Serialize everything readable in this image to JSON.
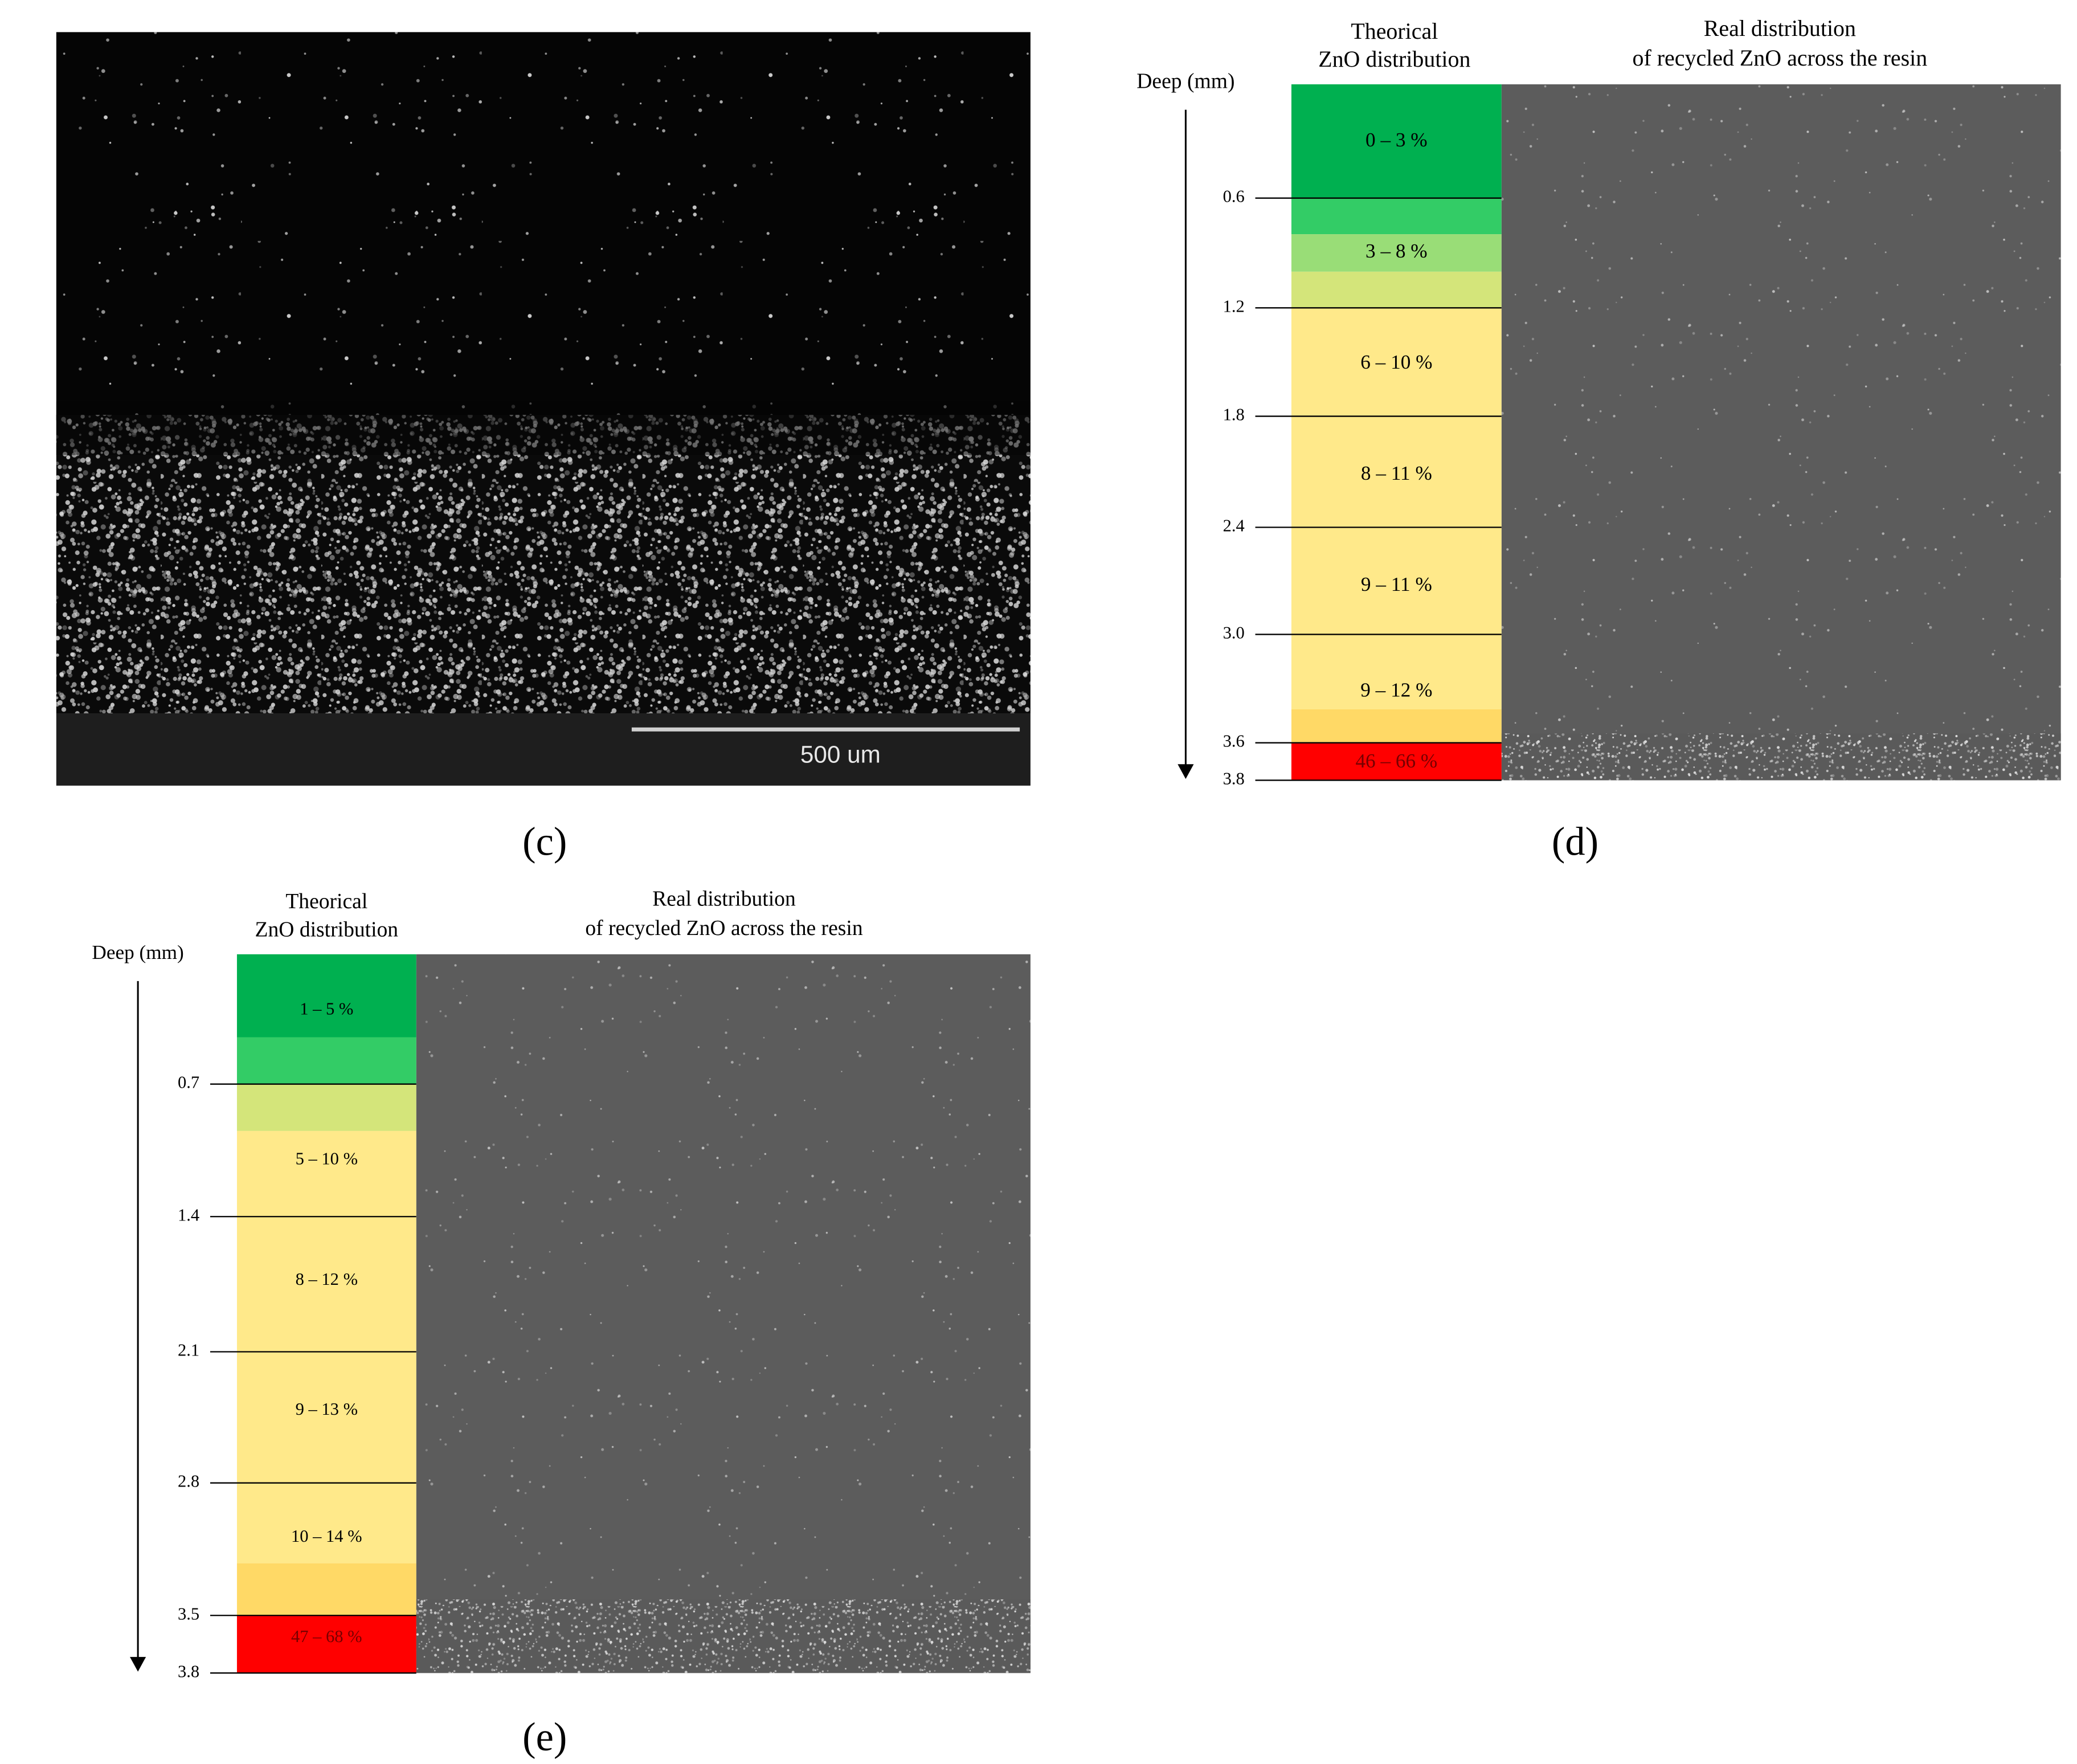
{
  "panels": [
    {
      "caption": "(c)",
      "scale_label": "500 um"
    },
    {
      "caption": "(d)",
      "left_header": [
        "Theorical",
        "ZnO distribution"
      ],
      "right_header": [
        "Real distribution",
        "of recycled ZnO across the resin"
      ],
      "axis_label": "Deep (mm)",
      "ticks": [
        "0.6",
        "1.2",
        "1.8",
        "2.4",
        "3.0",
        "3.6",
        "3.8"
      ],
      "bands": [
        "0 – 3 %",
        "3 – 8 %",
        "6 – 10 %",
        "8 – 11 %",
        "9 – 11 %",
        "9 – 12 %",
        "46 – 66 %"
      ]
    },
    {
      "caption": "(e)",
      "left_header": [
        "Theorical",
        "ZnO distribution"
      ],
      "right_header": [
        "Real distribution",
        "of recycled ZnO across the resin"
      ],
      "axis_label": "Deep (mm)",
      "ticks": [
        "0.7",
        "1.4",
        "2.1",
        "2.8",
        "3.5",
        "3.8"
      ],
      "bands": [
        "1 – 5 %",
        "5 – 10 %",
        "8 – 12 %",
        "9 – 13 %",
        "10 – 14 %",
        "47 – 68 %"
      ]
    }
  ]
}
